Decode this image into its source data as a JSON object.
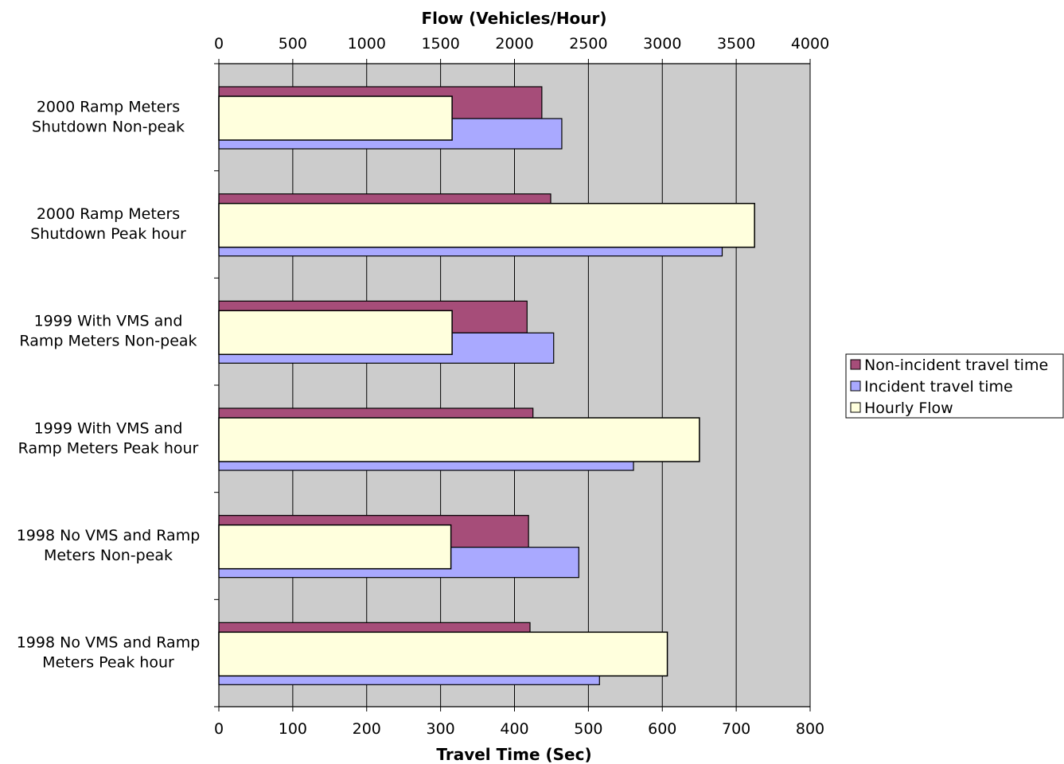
{
  "chart_data": {
    "type": "bar",
    "orientation": "horizontal",
    "categories": [
      [
        "2000 Ramp Meters",
        "Shutdown Non-peak"
      ],
      [
        "2000 Ramp Meters",
        "Shutdown Peak hour"
      ],
      [
        "1999 With VMS and",
        "Ramp Meters Non-peak"
      ],
      [
        "1999 With VMS and",
        "Ramp Meters Peak hour"
      ],
      [
        "1998 No VMS and Ramp",
        "Meters Non-peak"
      ],
      [
        "1998 No VMS and Ramp",
        "Meters Peak hour"
      ]
    ],
    "series": [
      {
        "name": "Non-incident travel time",
        "axis": "bottom",
        "color": "#a64d79",
        "values": [
          437,
          449,
          417,
          425,
          419,
          421
        ]
      },
      {
        "name": "Incident travel time",
        "axis": "bottom",
        "color": "#a9a9ff",
        "values": [
          464,
          681,
          453,
          561,
          487,
          515
        ]
      },
      {
        "name": "Hourly Flow",
        "axis": "top",
        "color": "#ffffdd",
        "values": [
          1578,
          3624,
          1578,
          3251,
          1570,
          3034
        ]
      }
    ],
    "x_bottom": {
      "label": "Travel Time (Sec)",
      "range": [
        0,
        800
      ],
      "ticks": [
        "0",
        "100",
        "200",
        "300",
        "400",
        "500",
        "600",
        "700",
        "800"
      ]
    },
    "x_top": {
      "label": "Flow (Vehicles/Hour)",
      "range": [
        0,
        4000
      ],
      "ticks": [
        "0",
        "500",
        "1000",
        "1500",
        "2000",
        "2500",
        "3000",
        "3500",
        "4000"
      ]
    },
    "grid": true,
    "plot_background": "#cccccc",
    "legend_position": "right"
  }
}
